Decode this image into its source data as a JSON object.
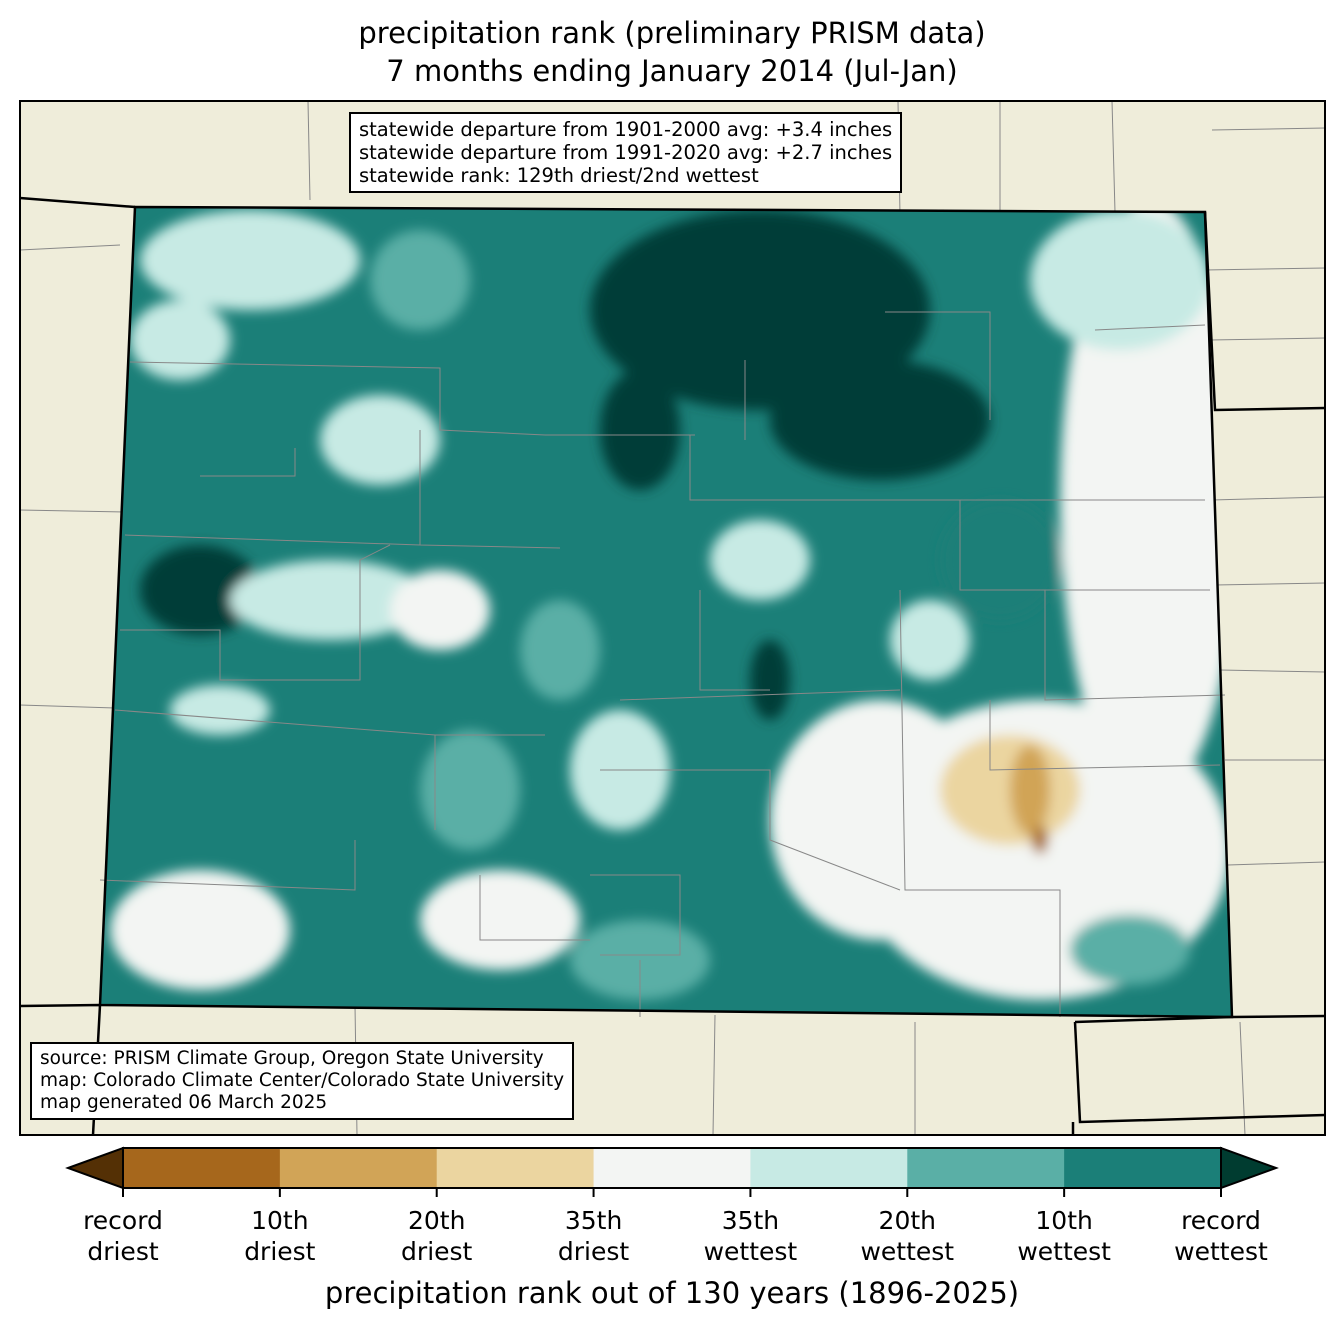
{
  "title": {
    "line1": "precipitation rank (preliminary PRISM data)",
    "line2": "7 months ending January 2014 (Jul-Jan)"
  },
  "stats_box": {
    "line1": "statewide departure from 1901-2000 avg: +3.4 inches",
    "line2": "statewide departure from 1991-2020 avg: +2.7 inches",
    "line3": "statewide rank: 129th driest/2nd wettest"
  },
  "source_box": {
    "line1": "source: PRISM Climate Group, Oregon State University",
    "line2": "map: Colorado Climate Center/Colorado State University",
    "line3": "map generated 06 March 2025"
  },
  "colorbar": {
    "title": "precipitation rank out of 130 years (1896-2025)",
    "under_color": "#543005",
    "over_color": "#003c30",
    "colors": [
      "#a6671c",
      "#d1a457",
      "#ebd5a0",
      "#f3f5f3",
      "#c7eae4",
      "#5aafa6",
      "#1b7f78"
    ],
    "ticks": [
      {
        "l1": "record",
        "l2": "driest"
      },
      {
        "l1": "10th",
        "l2": "driest"
      },
      {
        "l1": "20th",
        "l2": "driest"
      },
      {
        "l1": "35th",
        "l2": "driest"
      },
      {
        "l1": "35th",
        "l2": "wettest"
      },
      {
        "l1": "20th",
        "l2": "wettest"
      },
      {
        "l1": "10th",
        "l2": "wettest"
      },
      {
        "l1": "record",
        "l2": "wettest"
      }
    ]
  }
}
